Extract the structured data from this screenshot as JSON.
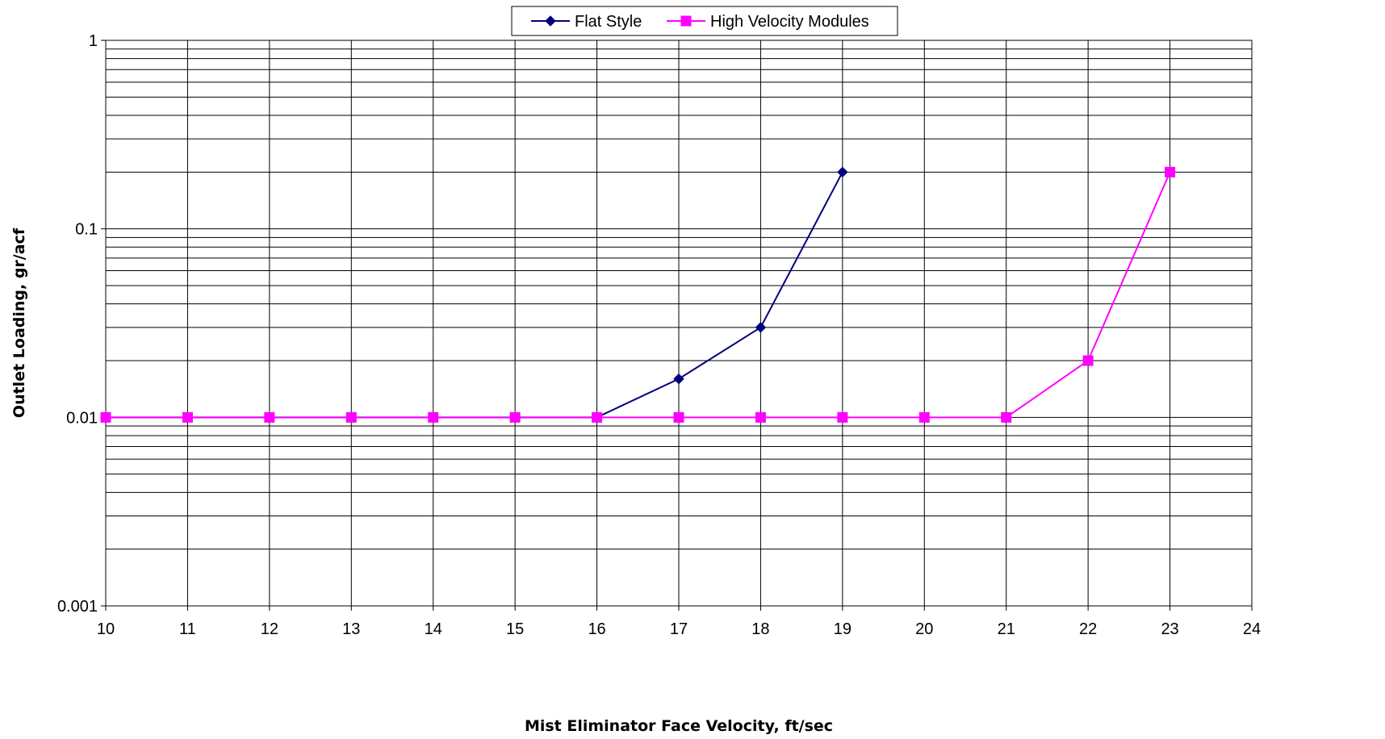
{
  "chart_data": {
    "type": "line",
    "title": "",
    "xlabel": "Mist Eliminator Face Velocity, ft/sec",
    "ylabel": "Outlet Loading, gr/acf",
    "x_scale": "linear",
    "y_scale": "log",
    "xlim": [
      10,
      24
    ],
    "ylim": [
      0.001,
      1
    ],
    "x_ticks": [
      10,
      11,
      12,
      13,
      14,
      15,
      16,
      17,
      18,
      19,
      20,
      21,
      22,
      23,
      24
    ],
    "x_tick_labels": [
      "10",
      "11",
      "12",
      "13",
      "14",
      "15",
      "16",
      "17",
      "18",
      "19",
      "20",
      "21",
      "22",
      "23",
      "24"
    ],
    "y_ticks": [
      0.001,
      0.01,
      0.1,
      1
    ],
    "y_tick_labels": [
      "0.001",
      "0.01",
      "0.1",
      "1"
    ],
    "grid": true,
    "legend_position": "top-center",
    "series": [
      {
        "name": "Flat Style",
        "color": "#00007F",
        "marker": "diamond",
        "x": [
          10,
          11,
          12,
          13,
          14,
          15,
          16,
          17,
          18,
          19
        ],
        "y": [
          0.01,
          0.01,
          0.01,
          0.01,
          0.01,
          0.01,
          0.01,
          0.016,
          0.03,
          0.2
        ]
      },
      {
        "name": "High Velocity Modules",
        "color": "#FF00FF",
        "marker": "square",
        "x": [
          10,
          11,
          12,
          13,
          14,
          15,
          16,
          17,
          18,
          19,
          20,
          21,
          22,
          23
        ],
        "y": [
          0.01,
          0.01,
          0.01,
          0.01,
          0.01,
          0.01,
          0.01,
          0.01,
          0.01,
          0.01,
          0.01,
          0.01,
          0.02,
          0.2
        ]
      }
    ]
  }
}
